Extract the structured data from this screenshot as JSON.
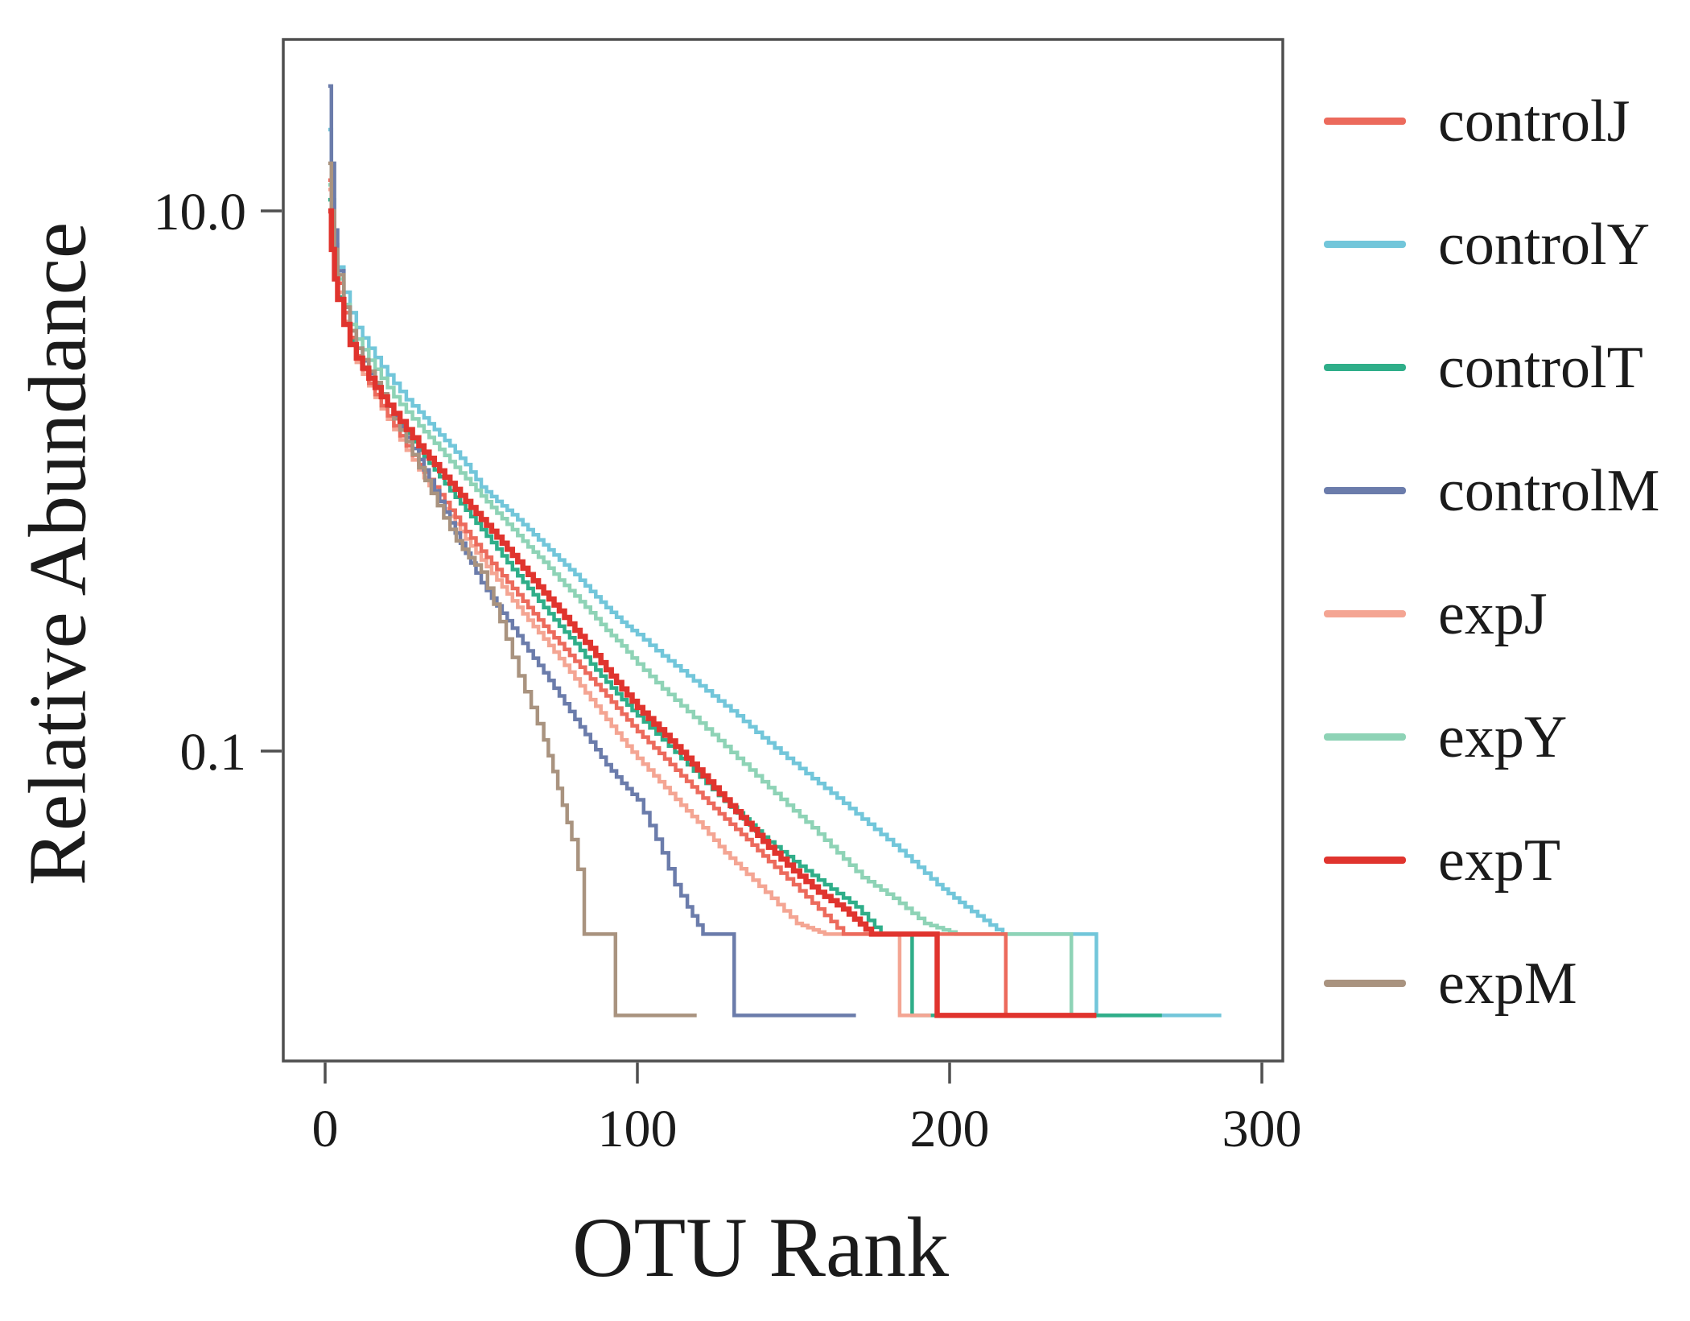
{
  "figure_title": "",
  "chart_data": {
    "type": "line",
    "subtype": "step-rank-abundance",
    "title": "",
    "xlabel": "OTU Rank",
    "ylabel": "Relative Abundance",
    "y_scale": "log",
    "grid": false,
    "legend_position": "right",
    "xlim": [
      -8,
      310
    ],
    "ylim": [
      0.009,
      40
    ],
    "x_ticks": [
      {
        "value": 0,
        "label": "0"
      },
      {
        "value": 100,
        "label": "100"
      },
      {
        "value": 200,
        "label": "200"
      },
      {
        "value": 300,
        "label": "300"
      }
    ],
    "y_ticks": [
      {
        "value": 10.0,
        "label": "10.0"
      },
      {
        "value": 0.1,
        "label": "0.1"
      }
    ],
    "axis_color": "#4f4f4f",
    "text_color": "#1b1b1b",
    "series": [
      {
        "name": "controlJ",
        "color": "#ec6a5c",
        "line_width": 4.5,
        "points": [
          [
            1,
            13
          ],
          [
            2,
            9
          ],
          [
            3,
            6.6
          ],
          [
            4,
            5.4
          ],
          [
            6,
            4.2
          ],
          [
            8,
            3.4
          ],
          [
            10,
            2.9
          ],
          [
            14,
            2.3
          ],
          [
            18,
            1.9
          ],
          [
            22,
            1.6
          ],
          [
            26,
            1.35
          ],
          [
            30,
            1.15
          ],
          [
            35,
            0.95
          ],
          [
            40,
            0.78
          ],
          [
            45,
            0.65
          ],
          [
            50,
            0.55
          ],
          [
            55,
            0.47
          ],
          [
            60,
            0.4
          ],
          [
            65,
            0.34
          ],
          [
            70,
            0.29
          ],
          [
            75,
            0.25
          ],
          [
            80,
            0.215
          ],
          [
            85,
            0.185
          ],
          [
            90,
            0.16
          ],
          [
            95,
            0.137
          ],
          [
            100,
            0.118
          ],
          [
            107,
            0.098
          ],
          [
            114,
            0.081
          ],
          [
            121,
            0.067
          ],
          [
            128,
            0.056
          ],
          [
            135,
            0.047
          ],
          [
            142,
            0.039
          ],
          [
            150,
            0.032
          ],
          [
            158,
            0.026
          ],
          [
            166,
            0.021
          ],
          [
            217,
            0.021
          ],
          [
            218,
            0.0105
          ],
          [
            240,
            0.0105
          ]
        ]
      },
      {
        "name": "controlY",
        "color": "#72c6da",
        "line_width": 4.5,
        "points": [
          [
            1,
            20
          ],
          [
            2,
            11
          ],
          [
            3,
            7.5
          ],
          [
            4,
            6.2
          ],
          [
            6,
            5.0
          ],
          [
            8,
            4.2
          ],
          [
            10,
            3.7
          ],
          [
            14,
            3.1
          ],
          [
            18,
            2.65
          ],
          [
            22,
            2.3
          ],
          [
            26,
            2.0
          ],
          [
            30,
            1.8
          ],
          [
            35,
            1.55
          ],
          [
            40,
            1.35
          ],
          [
            45,
            1.15
          ],
          [
            50,
            0.95
          ],
          [
            55,
            0.84
          ],
          [
            60,
            0.75
          ],
          [
            65,
            0.66
          ],
          [
            70,
            0.58
          ],
          [
            75,
            0.51
          ],
          [
            80,
            0.45
          ],
          [
            85,
            0.39
          ],
          [
            90,
            0.34
          ],
          [
            95,
            0.3
          ],
          [
            100,
            0.27
          ],
          [
            108,
            0.225
          ],
          [
            116,
            0.19
          ],
          [
            124,
            0.16
          ],
          [
            132,
            0.135
          ],
          [
            140,
            0.112
          ],
          [
            148,
            0.094
          ],
          [
            156,
            0.079
          ],
          [
            164,
            0.067
          ],
          [
            172,
            0.056
          ],
          [
            180,
            0.047
          ],
          [
            188,
            0.039
          ],
          [
            196,
            0.032
          ],
          [
            205,
            0.0265
          ],
          [
            217,
            0.021
          ],
          [
            246,
            0.021
          ],
          [
            247,
            0.0105
          ],
          [
            287,
            0.0105
          ]
        ]
      },
      {
        "name": "controlT",
        "color": "#2fae89",
        "line_width": 4.5,
        "points": [
          [
            1,
            11
          ],
          [
            2,
            7.5
          ],
          [
            3,
            5.8
          ],
          [
            4,
            4.8
          ],
          [
            6,
            3.9
          ],
          [
            8,
            3.3
          ],
          [
            10,
            2.9
          ],
          [
            14,
            2.4
          ],
          [
            18,
            2.05
          ],
          [
            22,
            1.75
          ],
          [
            26,
            1.5
          ],
          [
            30,
            1.3
          ],
          [
            35,
            1.1
          ],
          [
            40,
            0.92
          ],
          [
            45,
            0.78
          ],
          [
            50,
            0.66
          ],
          [
            55,
            0.56
          ],
          [
            60,
            0.47
          ],
          [
            65,
            0.4
          ],
          [
            70,
            0.34
          ],
          [
            75,
            0.29
          ],
          [
            80,
            0.25
          ],
          [
            85,
            0.21
          ],
          [
            90,
            0.18
          ],
          [
            95,
            0.155
          ],
          [
            100,
            0.135
          ],
          [
            108,
            0.11
          ],
          [
            116,
            0.089
          ],
          [
            124,
            0.072
          ],
          [
            132,
            0.059
          ],
          [
            140,
            0.048
          ],
          [
            150,
            0.039
          ],
          [
            160,
            0.032
          ],
          [
            170,
            0.0265
          ],
          [
            178,
            0.021
          ],
          [
            187,
            0.021
          ],
          [
            188,
            0.0105
          ],
          [
            268,
            0.0105
          ]
        ]
      },
      {
        "name": "controlM",
        "color": "#6b7cab",
        "line_width": 4.5,
        "points": [
          [
            1,
            29
          ],
          [
            2,
            15
          ],
          [
            3,
            8.5
          ],
          [
            4,
            6.0
          ],
          [
            6,
            4.4
          ],
          [
            8,
            3.6
          ],
          [
            10,
            3.1
          ],
          [
            14,
            2.5
          ],
          [
            18,
            2.1
          ],
          [
            22,
            1.75
          ],
          [
            26,
            1.45
          ],
          [
            30,
            1.2
          ],
          [
            35,
            0.92
          ],
          [
            40,
            0.7
          ],
          [
            45,
            0.54
          ],
          [
            50,
            0.42
          ],
          [
            55,
            0.345
          ],
          [
            60,
            0.285
          ],
          [
            65,
            0.235
          ],
          [
            70,
            0.195
          ],
          [
            75,
            0.16
          ],
          [
            80,
            0.131
          ],
          [
            85,
            0.108
          ],
          [
            90,
            0.089
          ],
          [
            95,
            0.076
          ],
          [
            100,
            0.066
          ],
          [
            104,
            0.053
          ],
          [
            108,
            0.042
          ],
          [
            112,
            0.032
          ],
          [
            116,
            0.0265
          ],
          [
            121,
            0.021
          ],
          [
            130,
            0.021
          ],
          [
            131,
            0.0105
          ],
          [
            170,
            0.0105
          ]
        ]
      },
      {
        "name": "expJ",
        "color": "#f4a593",
        "line_width": 4.5,
        "points": [
          [
            1,
            12
          ],
          [
            2,
            8.2
          ],
          [
            3,
            6.0
          ],
          [
            4,
            5.0
          ],
          [
            6,
            3.9
          ],
          [
            8,
            3.2
          ],
          [
            10,
            2.75
          ],
          [
            14,
            2.25
          ],
          [
            18,
            1.85
          ],
          [
            22,
            1.55
          ],
          [
            26,
            1.3
          ],
          [
            30,
            1.1
          ],
          [
            35,
            0.9
          ],
          [
            40,
            0.74
          ],
          [
            45,
            0.61
          ],
          [
            50,
            0.51
          ],
          [
            55,
            0.43
          ],
          [
            60,
            0.36
          ],
          [
            65,
            0.305
          ],
          [
            70,
            0.26
          ],
          [
            75,
            0.22
          ],
          [
            80,
            0.185
          ],
          [
            85,
            0.155
          ],
          [
            90,
            0.131
          ],
          [
            95,
            0.11
          ],
          [
            100,
            0.094
          ],
          [
            107,
            0.077
          ],
          [
            114,
            0.063
          ],
          [
            121,
            0.052
          ],
          [
            128,
            0.042
          ],
          [
            135,
            0.035
          ],
          [
            143,
            0.0285
          ],
          [
            151,
            0.023
          ],
          [
            160,
            0.021
          ],
          [
            183,
            0.021
          ],
          [
            184,
            0.0105
          ],
          [
            194,
            0.0105
          ]
        ]
      },
      {
        "name": "expY",
        "color": "#8ed3b6",
        "line_width": 4.5,
        "points": [
          [
            1,
            12.5
          ],
          [
            2,
            8.8
          ],
          [
            3,
            6.8
          ],
          [
            4,
            5.6
          ],
          [
            6,
            4.5
          ],
          [
            8,
            3.8
          ],
          [
            10,
            3.35
          ],
          [
            14,
            2.8
          ],
          [
            18,
            2.4
          ],
          [
            22,
            2.05
          ],
          [
            26,
            1.8
          ],
          [
            30,
            1.6
          ],
          [
            35,
            1.38
          ],
          [
            40,
            1.18
          ],
          [
            45,
            1.02
          ],
          [
            50,
            0.88
          ],
          [
            55,
            0.76
          ],
          [
            60,
            0.66
          ],
          [
            65,
            0.57
          ],
          [
            70,
            0.5
          ],
          [
            75,
            0.43
          ],
          [
            80,
            0.375
          ],
          [
            85,
            0.325
          ],
          [
            90,
            0.28
          ],
          [
            95,
            0.245
          ],
          [
            100,
            0.21
          ],
          [
            108,
            0.17
          ],
          [
            116,
            0.14
          ],
          [
            124,
            0.115
          ],
          [
            132,
            0.094
          ],
          [
            140,
            0.077
          ],
          [
            148,
            0.063
          ],
          [
            156,
            0.052
          ],
          [
            164,
            0.042
          ],
          [
            172,
            0.034
          ],
          [
            182,
            0.0285
          ],
          [
            192,
            0.023
          ],
          [
            202,
            0.021
          ],
          [
            238,
            0.021
          ],
          [
            239,
            0.0105
          ],
          [
            255,
            0.0105
          ]
        ]
      },
      {
        "name": "expT",
        "color": "#e0342e",
        "line_width": 6.5,
        "points": [
          [
            1,
            10
          ],
          [
            2,
            7.2
          ],
          [
            3,
            5.6
          ],
          [
            4,
            4.7
          ],
          [
            6,
            3.8
          ],
          [
            8,
            3.2
          ],
          [
            10,
            2.85
          ],
          [
            14,
            2.4
          ],
          [
            18,
            2.05
          ],
          [
            22,
            1.78
          ],
          [
            26,
            1.55
          ],
          [
            30,
            1.35
          ],
          [
            35,
            1.15
          ],
          [
            40,
            0.98
          ],
          [
            45,
            0.84
          ],
          [
            50,
            0.72
          ],
          [
            55,
            0.62
          ],
          [
            60,
            0.53
          ],
          [
            65,
            0.45
          ],
          [
            70,
            0.385
          ],
          [
            75,
            0.33
          ],
          [
            80,
            0.28
          ],
          [
            85,
            0.24
          ],
          [
            90,
            0.2
          ],
          [
            95,
            0.17
          ],
          [
            100,
            0.145
          ],
          [
            107,
            0.12
          ],
          [
            114,
            0.099
          ],
          [
            121,
            0.081
          ],
          [
            128,
            0.066
          ],
          [
            135,
            0.054
          ],
          [
            142,
            0.044
          ],
          [
            150,
            0.036
          ],
          [
            158,
            0.03
          ],
          [
            166,
            0.026
          ],
          [
            175,
            0.021
          ],
          [
            195,
            0.021
          ],
          [
            196,
            0.0105
          ],
          [
            247,
            0.0105
          ]
        ]
      },
      {
        "name": "expM",
        "color": "#a9937f",
        "line_width": 4.5,
        "points": [
          [
            1,
            15
          ],
          [
            2,
            10
          ],
          [
            3,
            7.2
          ],
          [
            4,
            5.8
          ],
          [
            6,
            4.4
          ],
          [
            8,
            3.6
          ],
          [
            10,
            3.1
          ],
          [
            14,
            2.55
          ],
          [
            18,
            2.1
          ],
          [
            22,
            1.7
          ],
          [
            26,
            1.4
          ],
          [
            30,
            1.12
          ],
          [
            34,
            0.9
          ],
          [
            38,
            0.73
          ],
          [
            42,
            0.6
          ],
          [
            46,
            0.52
          ],
          [
            50,
            0.46
          ],
          [
            54,
            0.35
          ],
          [
            58,
            0.26
          ],
          [
            62,
            0.19
          ],
          [
            66,
            0.145
          ],
          [
            70,
            0.11
          ],
          [
            73,
            0.084
          ],
          [
            76,
            0.063
          ],
          [
            79,
            0.047
          ],
          [
            81,
            0.0365
          ],
          [
            83,
            0.021
          ],
          [
            92,
            0.021
          ],
          [
            93,
            0.0105
          ],
          [
            119,
            0.0105
          ]
        ]
      }
    ]
  }
}
